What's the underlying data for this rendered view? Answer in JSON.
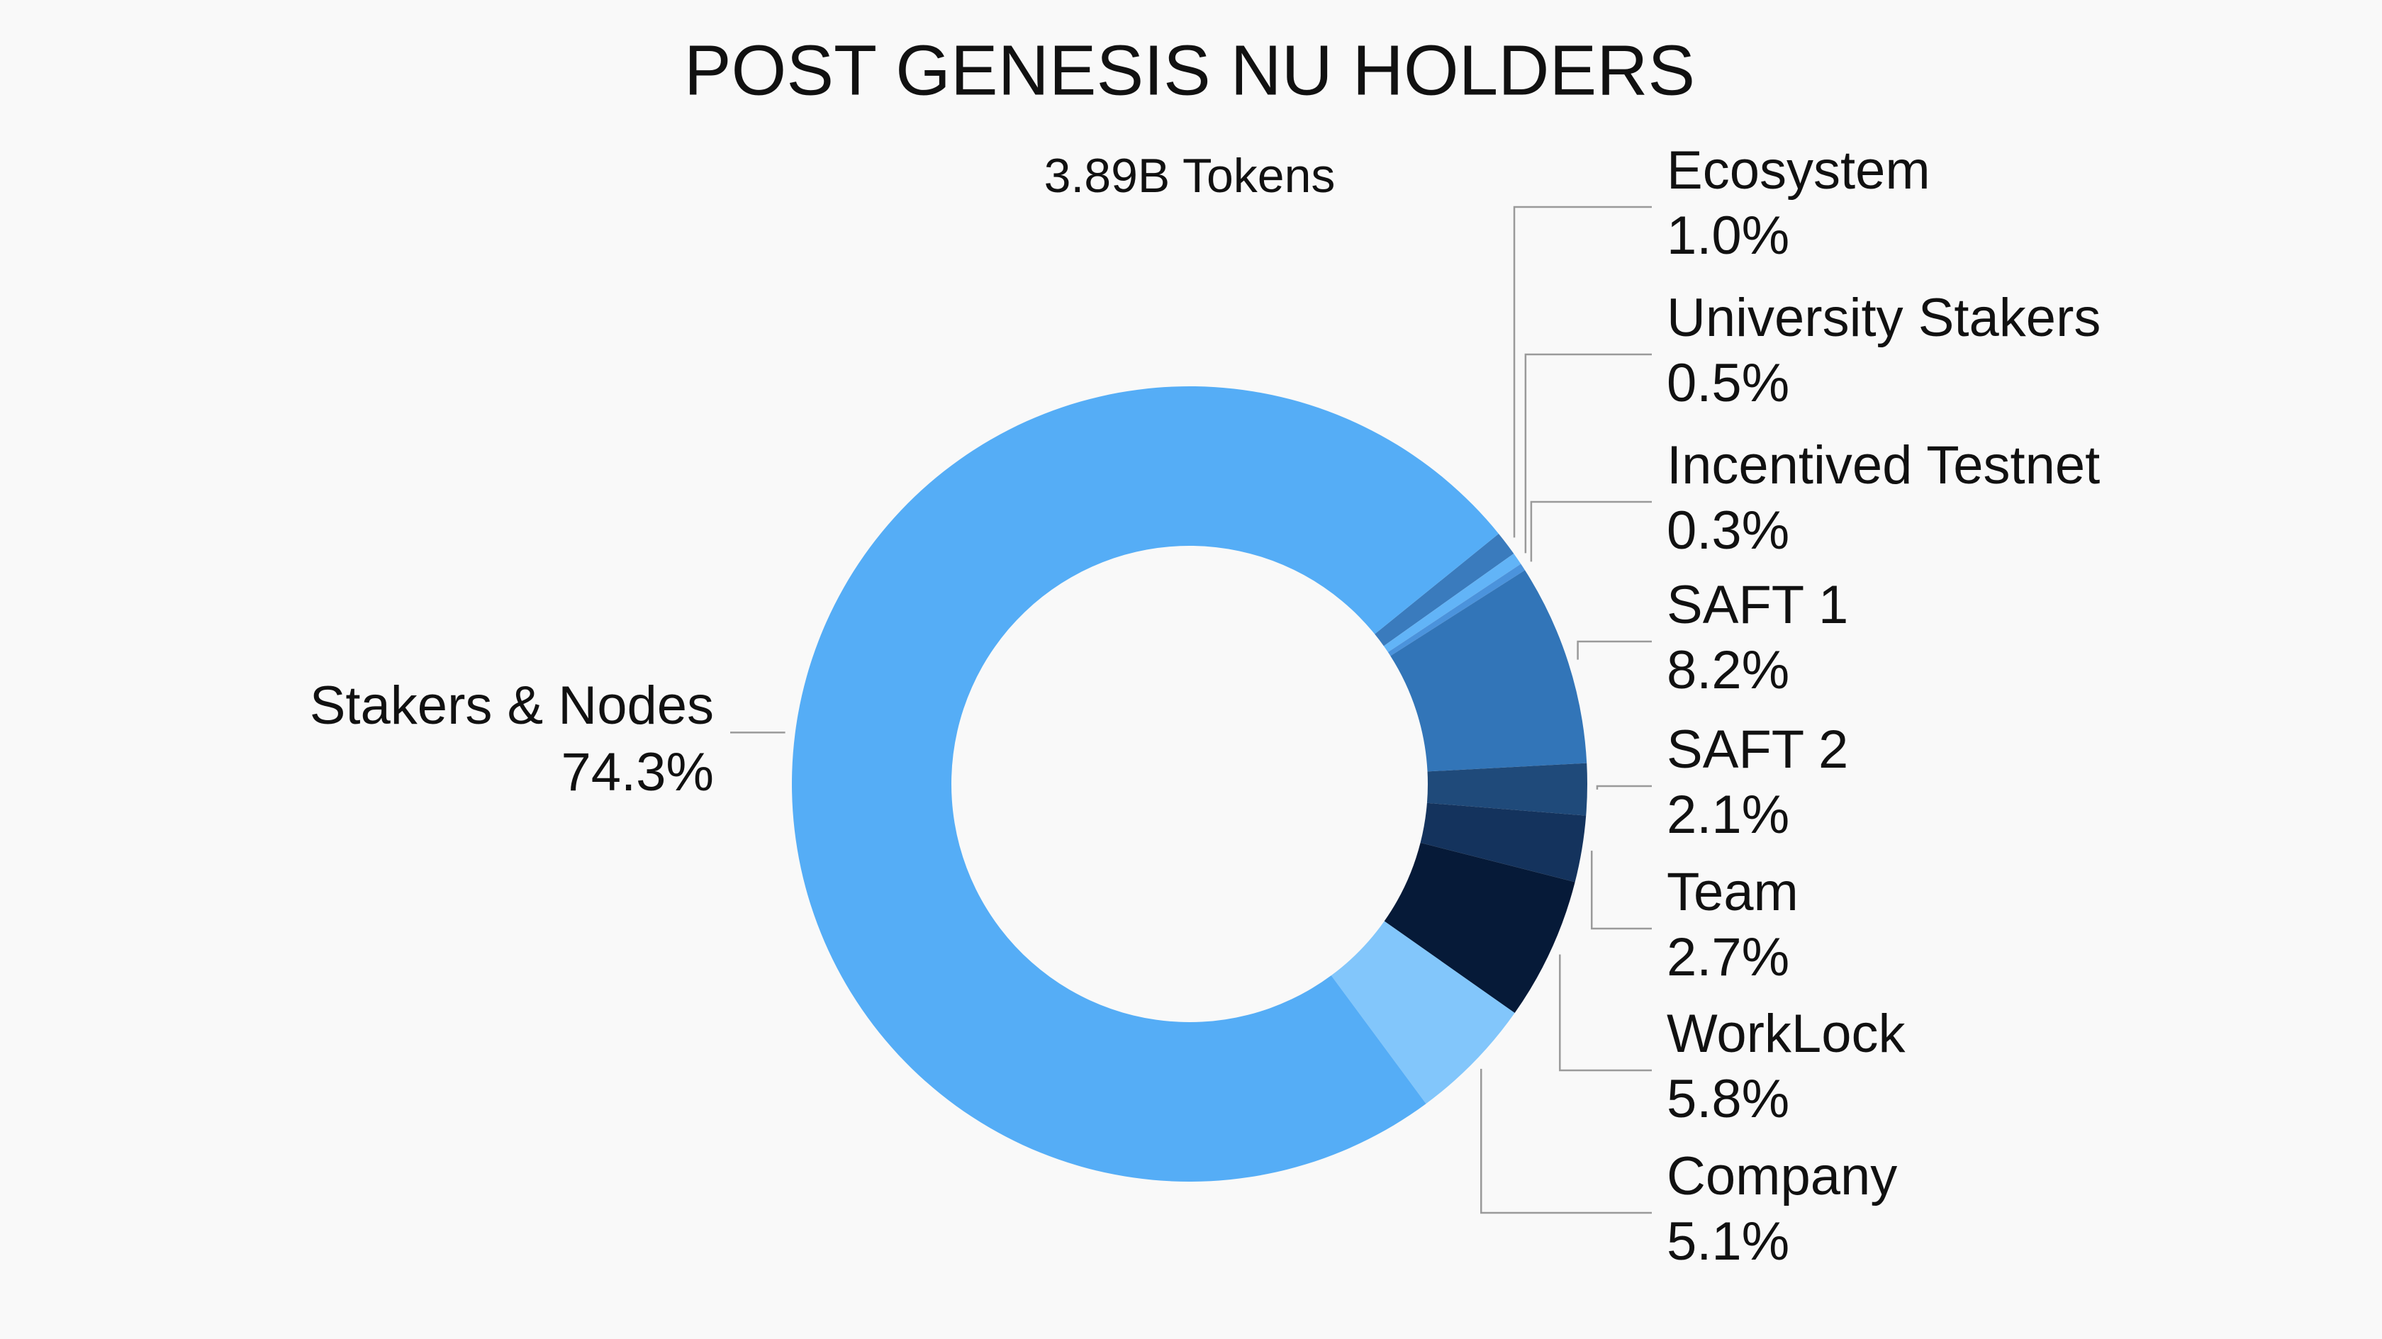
{
  "chart_data": {
    "type": "donut",
    "title": "POST GENESIS NU HOLDERS",
    "subtitle": "3.89B Tokens",
    "categories": [
      "Ecosystem",
      "University Stakers",
      "Incentived Testnet",
      "SAFT 1",
      "SAFT 2",
      "Team",
      "WorkLock",
      "Company",
      "Stakers & Nodes"
    ],
    "values": [
      1.0,
      0.5,
      0.3,
      8.2,
      2.1,
      2.7,
      5.8,
      5.1,
      74.3
    ],
    "value_labels": [
      "1.0%",
      "0.5%",
      "0.3%",
      "8.2%",
      "2.1%",
      "2.7%",
      "5.8%",
      "5.1%",
      "74.3%"
    ],
    "colors": [
      "#3a7bbd",
      "#62b4f7",
      "#4b93dc",
      "#3275b8",
      "#1f4a7a",
      "#14335d",
      "#061a38",
      "#82c6fb",
      "#55adf6"
    ]
  }
}
